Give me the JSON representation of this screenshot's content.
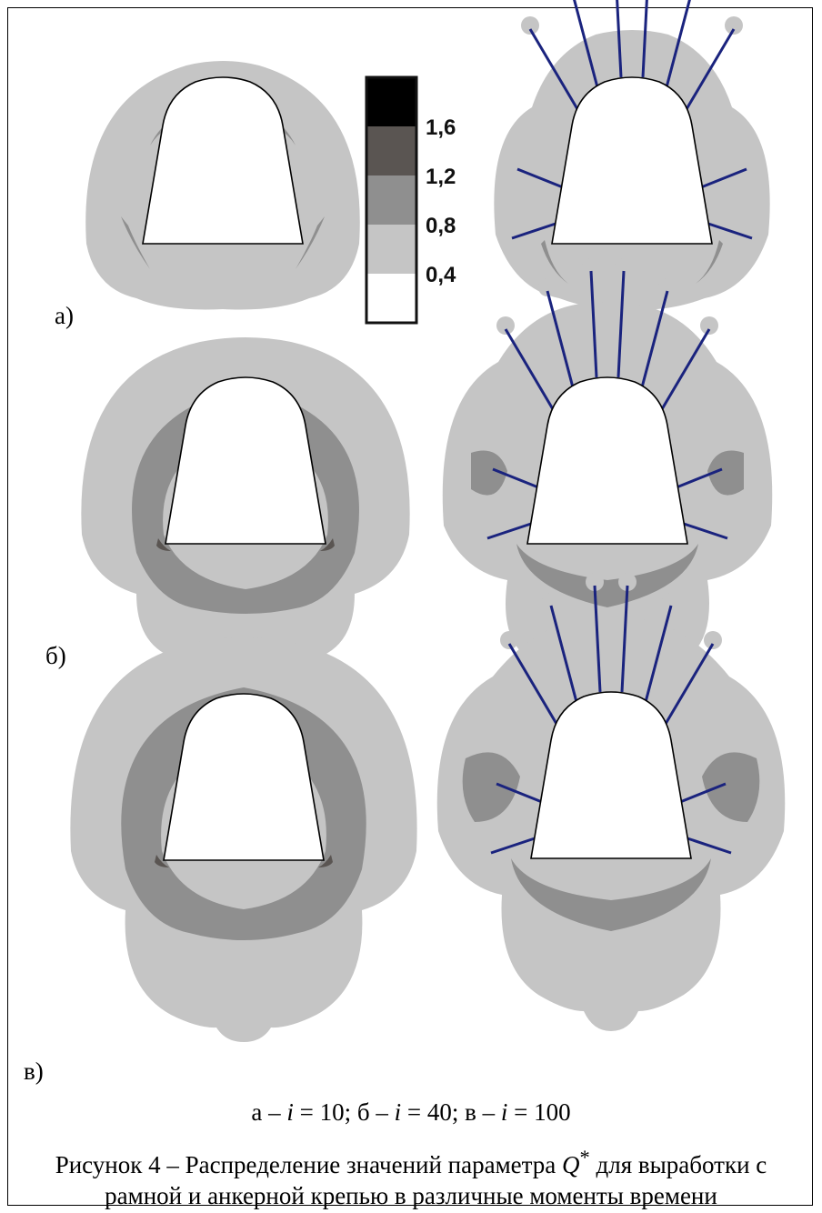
{
  "figure": {
    "panel_labels": [
      "а)",
      "б)",
      "в)"
    ],
    "legend": {
      "values": [
        "1,6",
        "1,2",
        "0,8",
        "0,4"
      ],
      "colors": [
        "#000000",
        "#5a5552",
        "#8f8f8f",
        "#c5c5c5",
        "#ffffff"
      ]
    },
    "colors": {
      "outer_zone": "#c5c5c5",
      "middle_zone": "#8f8f8f",
      "inner_zone": "#5a5552",
      "bolt": "#1a237e",
      "opening": "#ffffff"
    },
    "subcaption": {
      "a_prefix": "а – ",
      "b_prefix": "; б – ",
      "c_prefix": "; в – ",
      "var": "i",
      "eq": " = ",
      "a_value": "10",
      "b_value": "40",
      "c_value": "100"
    },
    "caption": {
      "before": "Рисунок 4 – Распределение значений параметра ",
      "symbol": "Q",
      "sup": "*",
      "after": " для выработки с рамной и анкерной крепью в различные моменты времени"
    }
  }
}
